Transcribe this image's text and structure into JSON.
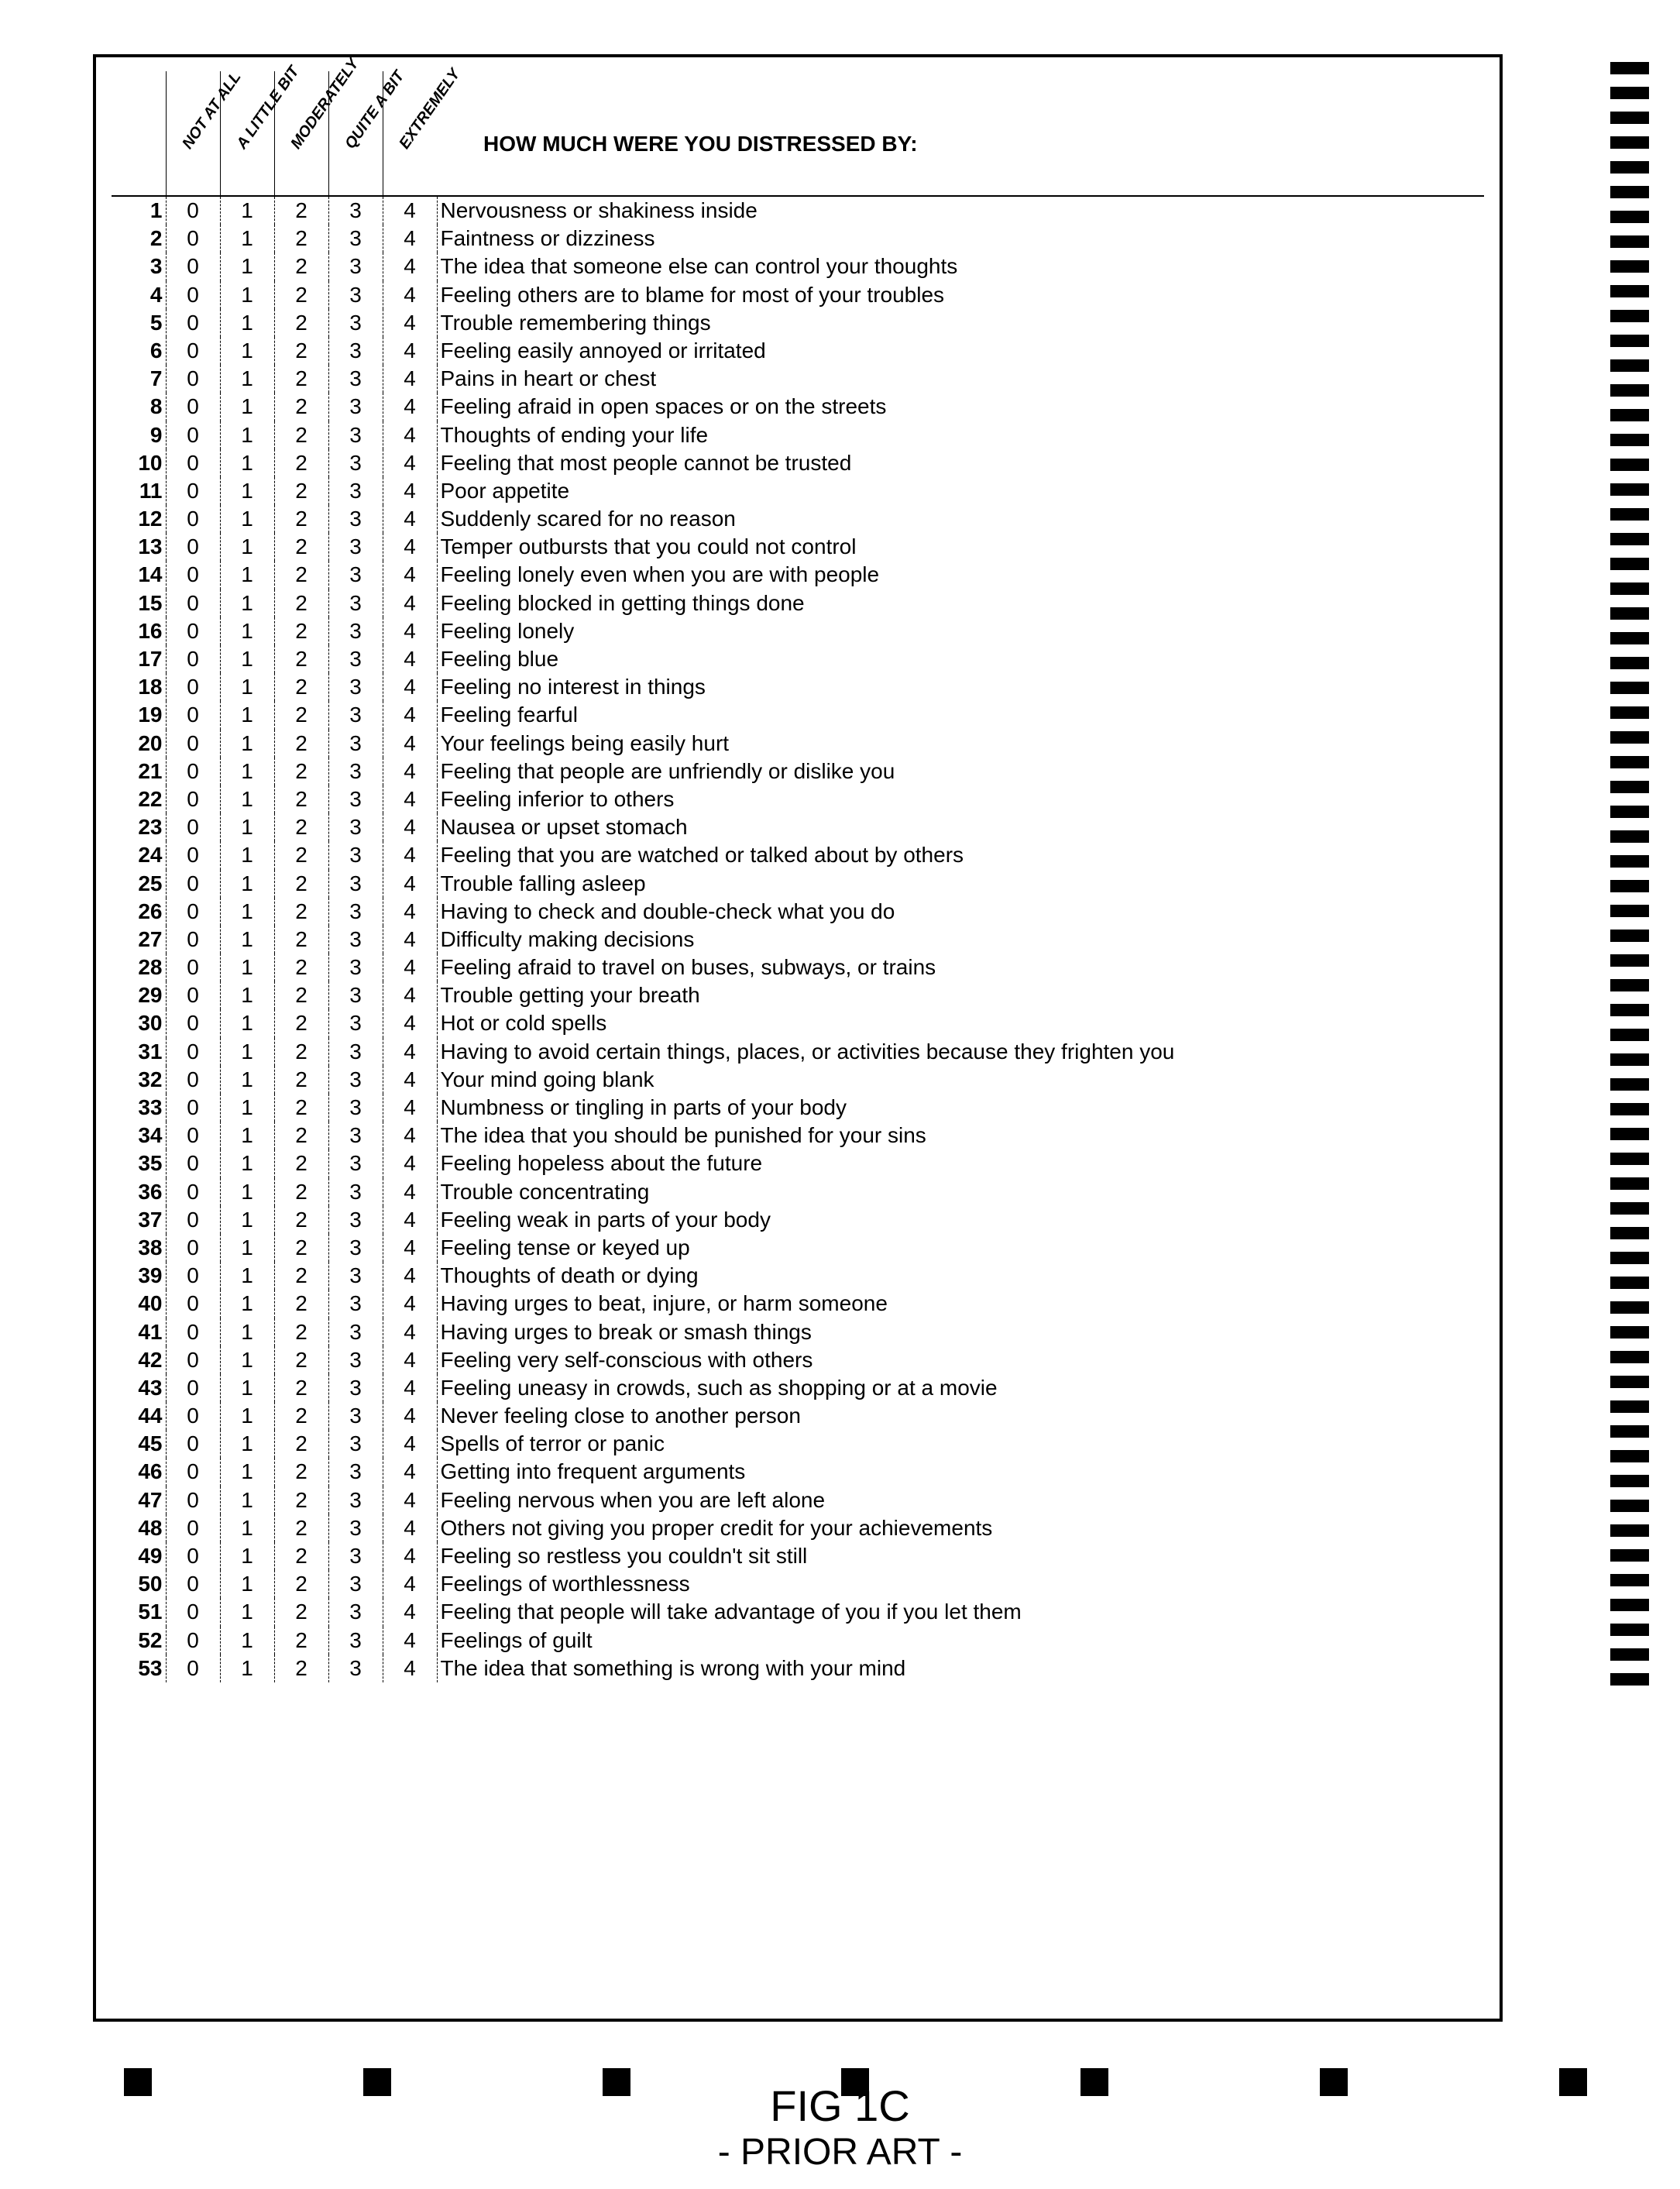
{
  "title": "HOW MUCH WERE YOU DISTRESSED BY:",
  "scale_labels": [
    "NOT AT ALL",
    "A LITTLE BIT",
    "MODERATELY",
    "QUITE A BIT",
    "EXTREMELY"
  ],
  "scale_values": [
    "0",
    "1",
    "2",
    "3",
    "4"
  ],
  "caption_line1": "FIG 1C",
  "caption_line2": "- PRIOR ART -",
  "questions": [
    "Nervousness or shakiness inside",
    "Faintness or dizziness",
    "The idea that someone else can control your thoughts",
    "Feeling others are to blame for most of your troubles",
    "Trouble remembering things",
    "Feeling easily annoyed or irritated",
    "Pains in heart or chest",
    "Feeling afraid in open spaces or on the streets",
    "Thoughts of ending your life",
    "Feeling that most people cannot be trusted",
    "Poor appetite",
    "Suddenly scared for no reason",
    "Temper outbursts that you could not control",
    "Feeling lonely even when you are with people",
    "Feeling blocked in getting things done",
    "Feeling lonely",
    "Feeling blue",
    "Feeling no interest in things",
    "Feeling fearful",
    "Your feelings being easily hurt",
    "Feeling that people are unfriendly or dislike you",
    "Feeling inferior to others",
    "Nausea or upset stomach",
    "Feeling that you are watched or talked about by others",
    "Trouble falling asleep",
    "Having to check and double-check what you do",
    "Difficulty making decisions",
    "Feeling afraid to travel on buses, subways, or trains",
    "Trouble getting your breath",
    "Hot or cold spells",
    "Having to avoid certain things, places, or activities because they frighten you",
    "Your mind going blank",
    "Numbness or tingling in parts of your body",
    "The idea that you should be punished for your sins",
    "Feeling hopeless about the future",
    "Trouble concentrating",
    "Feeling weak in parts of your body",
    "Feeling tense or keyed up",
    "Thoughts of death or dying",
    "Having urges to beat, injure, or harm someone",
    "Having urges to break or smash things",
    "Feeling very self-conscious with others",
    "Feeling uneasy in crowds, such as shopping or at a movie",
    "Never feeling close to another person",
    "Spells of terror or panic",
    "Getting into frequent arguments",
    "Feeling nervous when you are left alone",
    "Others not giving you proper credit for your achievements",
    "Feeling so restless you couldn't sit still",
    "Feelings of worthlessness",
    "Feeling that people will take advantage of you if you let them",
    "Feelings of guilt",
    "The idea that something is wrong with your mind"
  ],
  "side_tick_count": 66,
  "bottom_square_count": 7,
  "colors": {
    "border": "#000000",
    "text": "#000000",
    "background": "#ffffff"
  }
}
